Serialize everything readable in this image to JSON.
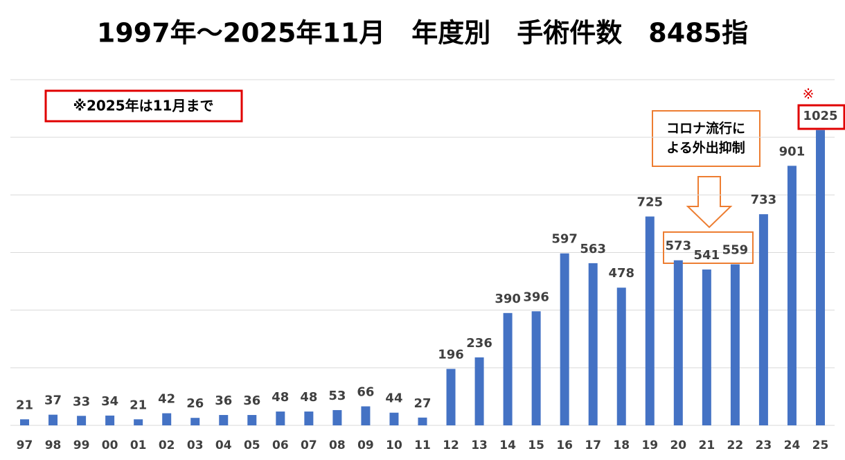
{
  "chart_data": {
    "type": "bar",
    "title": "1997年～2025年11月　年度別　手術件数　8485指",
    "note": "※2025年は11月まで",
    "annotation": [
      "コロナ流行に",
      "よる外出抑制"
    ],
    "footnote_mark": "※",
    "categories": [
      "97",
      "98",
      "99",
      "00",
      "01",
      "02",
      "03",
      "04",
      "05",
      "06",
      "07",
      "08",
      "09",
      "10",
      "11",
      "12",
      "13",
      "14",
      "15",
      "16",
      "17",
      "18",
      "19",
      "20",
      "21",
      "22",
      "23",
      "24",
      "25"
    ],
    "values": [
      21,
      37,
      33,
      34,
      21,
      42,
      26,
      36,
      36,
      48,
      48,
      53,
      66,
      44,
      27,
      196,
      236,
      390,
      396,
      597,
      563,
      478,
      725,
      573,
      541,
      559,
      733,
      901,
      1025
    ],
    "color": "#4472c4",
    "ylim": [
      0,
      1200
    ],
    "yticks": [
      0,
      200,
      400,
      600,
      800,
      1000,
      1200
    ],
    "grid": true
  }
}
